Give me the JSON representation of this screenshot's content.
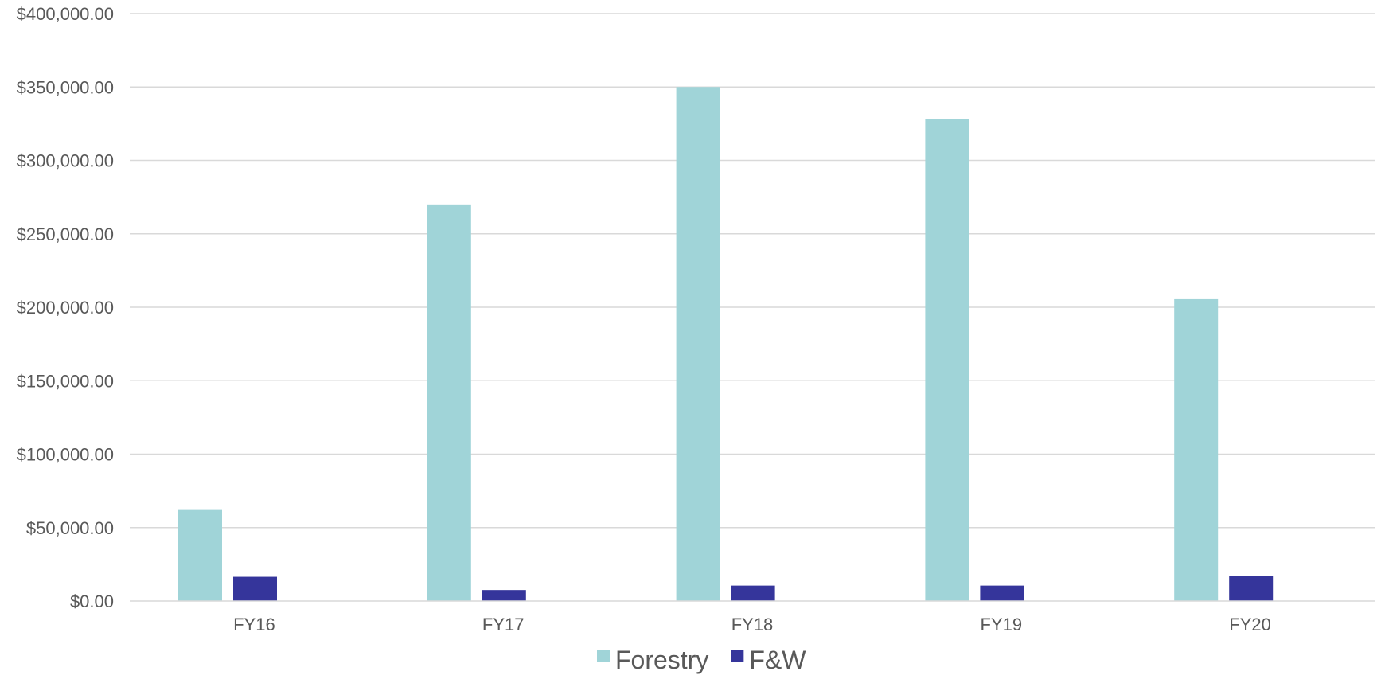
{
  "chart_data": {
    "type": "bar",
    "title": "",
    "xlabel": "",
    "ylabel": "",
    "categories": [
      "FY16",
      "FY17",
      "FY18",
      "FY19",
      "FY20"
    ],
    "series": [
      {
        "name": "Forestry",
        "color": "#a0d4d8",
        "values": [
          62000,
          270000,
          350000,
          328000,
          206000
        ]
      },
      {
        "name": "F&W",
        "color": "#35359b",
        "values": [
          16500,
          7500,
          10500,
          10500,
          17000
        ]
      }
    ],
    "ylim": [
      0,
      400000
    ],
    "y_ticks": [
      0,
      50000,
      100000,
      150000,
      200000,
      250000,
      300000,
      350000,
      400000
    ],
    "y_tick_labels": [
      "$0.00",
      "$50,000.00",
      "$100,000.00",
      "$150,000.00",
      "$200,000.00",
      "$250,000.00",
      "$300,000.00",
      "$350,000.00",
      "$400,000.00"
    ],
    "grid": true,
    "gridline_color": "#d9d9d9",
    "axis_line_color": "#d9d9d9",
    "legend_position": "bottom"
  }
}
